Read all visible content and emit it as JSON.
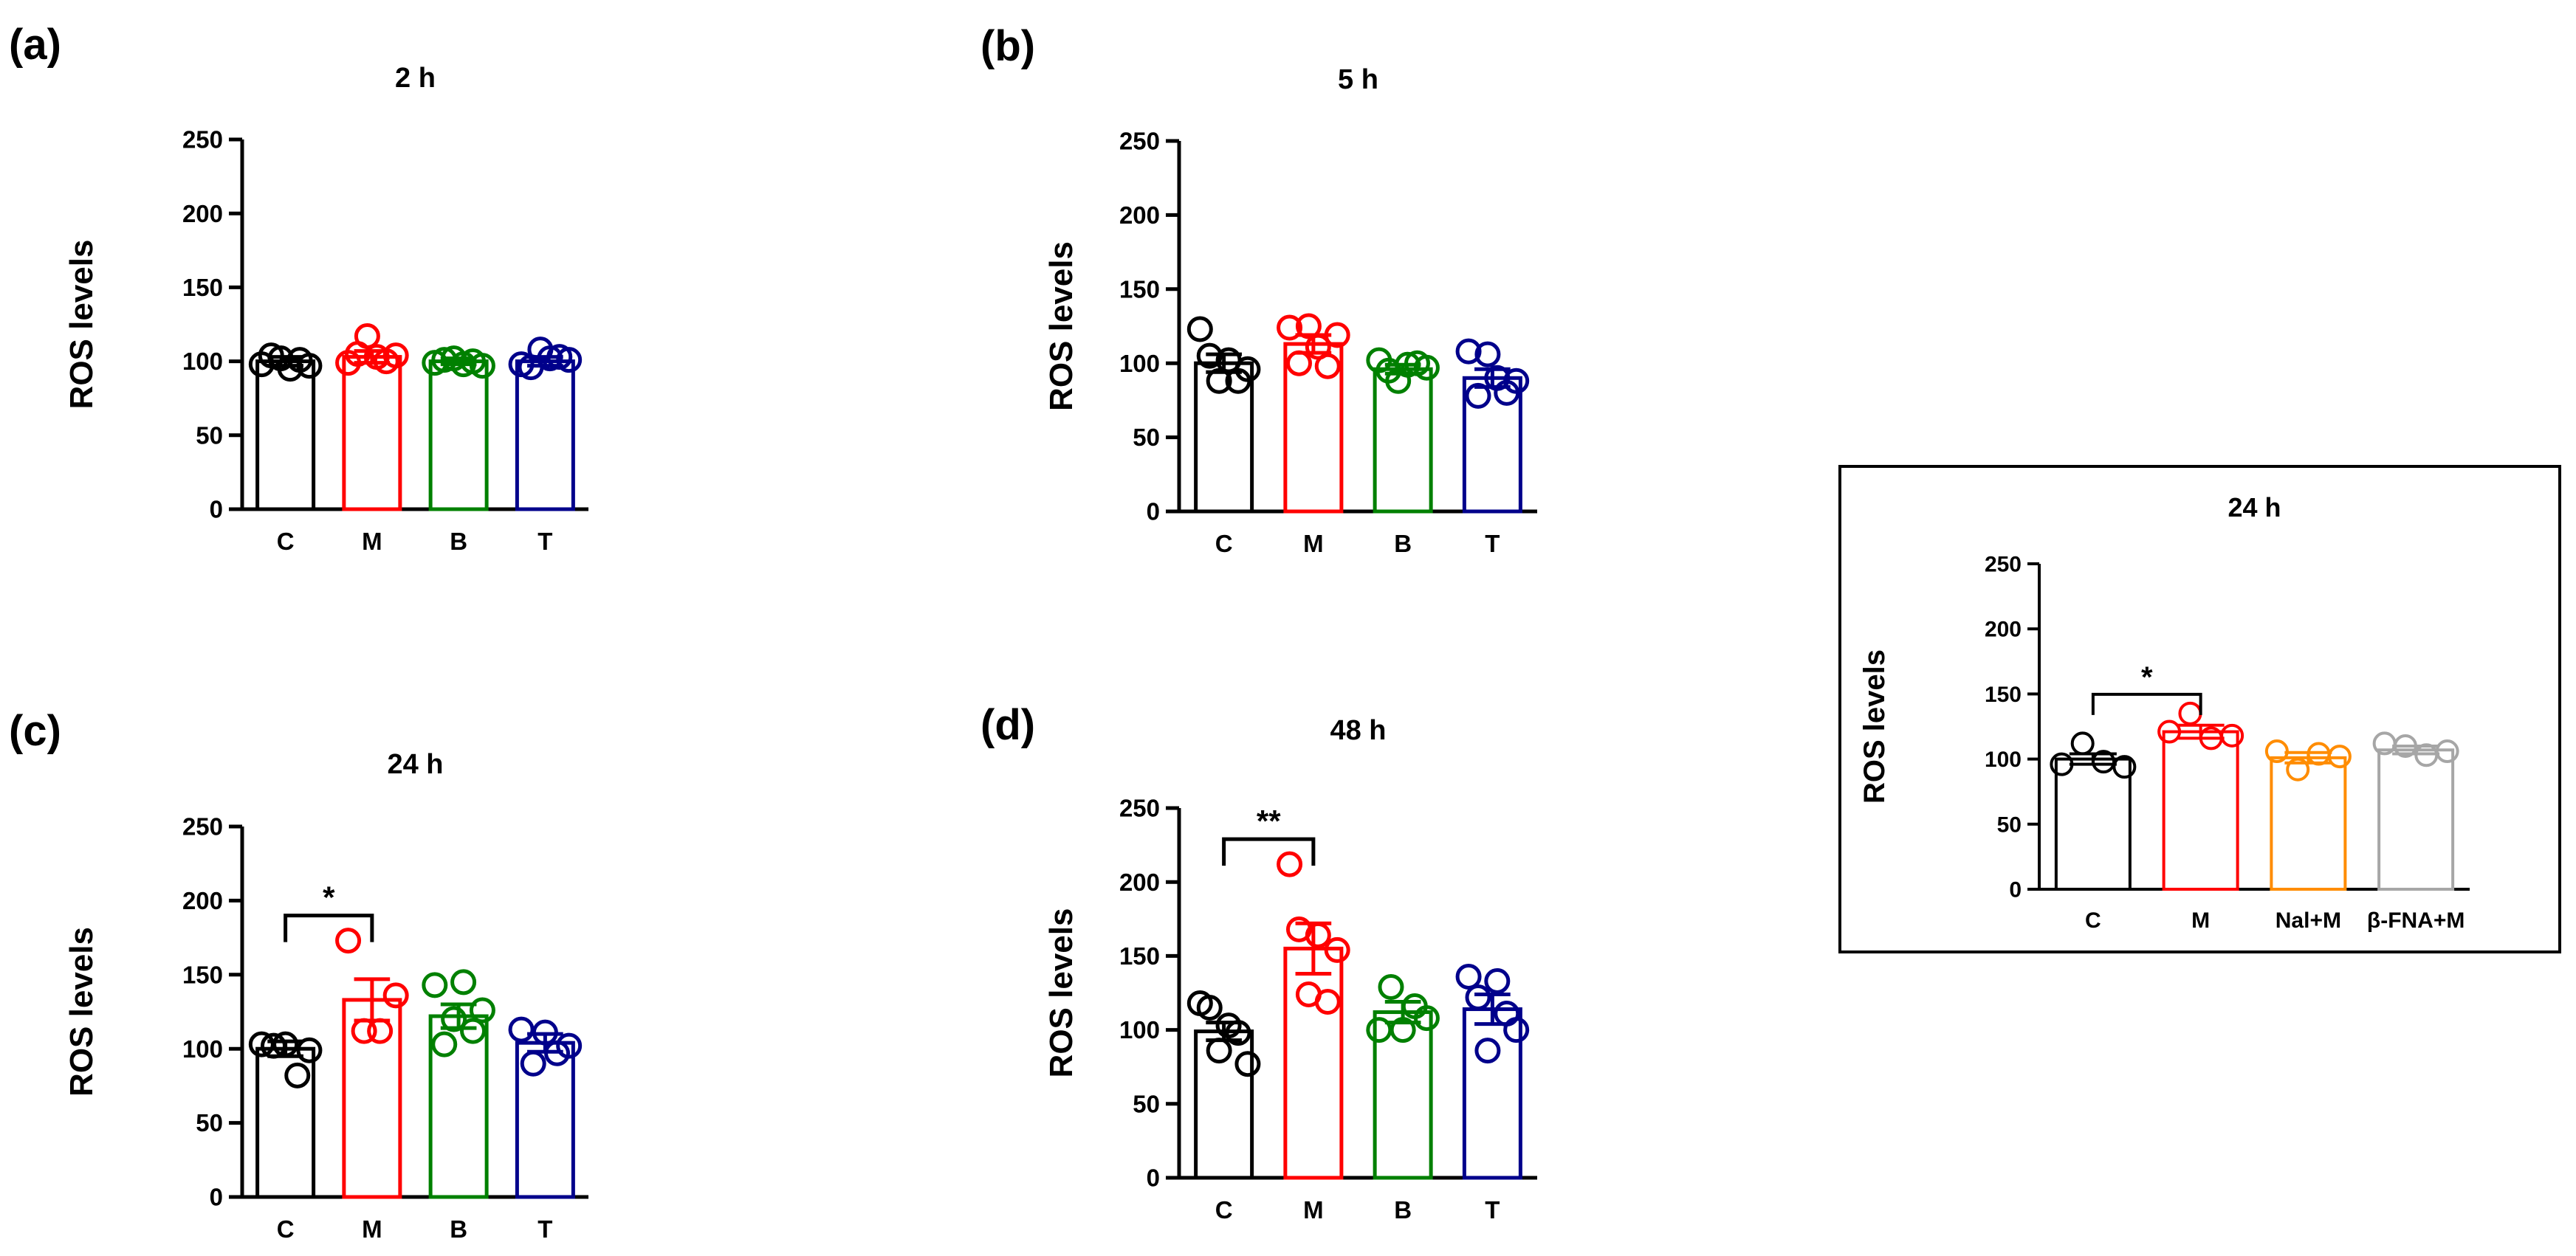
{
  "figure": {
    "background": "#ffffff",
    "axis_color": "#000000",
    "series_colors": {
      "C": "#000000",
      "M": "#ff0000",
      "B": "#008000",
      "T": "#00008b",
      "Nal+M": "#ff8c00",
      "β-FNA+M": "#a6a6a6"
    }
  },
  "chart_data": [
    {
      "id": "a",
      "panel_label": "(a)",
      "type": "bar",
      "title": "2 h",
      "xlabel": "",
      "ylabel": "ROS levels",
      "ylim": [
        0,
        250
      ],
      "yticks": [
        0,
        50,
        100,
        150,
        200,
        250
      ],
      "categories": [
        "C",
        "M",
        "B",
        "T"
      ],
      "values": [
        100,
        103,
        100,
        100
      ],
      "errors": [
        3,
        4,
        2,
        3
      ],
      "points": [
        [
          98,
          104,
          102,
          95,
          101,
          97
        ],
        [
          99,
          105,
          117,
          103,
          100,
          104
        ],
        [
          99,
          101,
          102,
          98,
          100,
          97
        ],
        [
          98,
          96,
          108,
          102,
          103,
          101
        ]
      ],
      "significance": []
    },
    {
      "id": "b",
      "panel_label": "(b)",
      "type": "bar",
      "title": "5 h",
      "xlabel": "",
      "ylabel": "ROS levels",
      "ylim": [
        0,
        250
      ],
      "yticks": [
        0,
        50,
        100,
        150,
        200,
        250
      ],
      "categories": [
        "C",
        "M",
        "B",
        "T"
      ],
      "values": [
        100,
        113,
        96,
        90
      ],
      "errors": [
        6,
        6,
        3,
        6
      ],
      "points": [
        [
          123,
          105,
          88,
          102,
          88,
          96
        ],
        [
          124,
          100,
          125,
          111,
          98,
          119
        ],
        [
          102,
          95,
          88,
          99,
          100,
          97
        ],
        [
          108,
          78,
          106,
          90,
          80,
          88
        ]
      ],
      "significance": []
    },
    {
      "id": "c",
      "panel_label": "(c)",
      "type": "bar",
      "title": "24 h",
      "xlabel": "",
      "ylabel": "ROS levels",
      "ylim": [
        0,
        250
      ],
      "yticks": [
        0,
        50,
        100,
        150,
        200,
        250
      ],
      "categories": [
        "C",
        "M",
        "B",
        "T"
      ],
      "values": [
        100,
        133,
        122,
        104
      ],
      "errors": [
        5,
        14,
        8,
        6
      ],
      "points": [
        [
          103,
          102,
          103,
          82,
          99
        ],
        [
          173,
          112,
          112,
          136
        ],
        [
          143,
          103,
          120,
          145,
          112,
          126
        ],
        [
          113,
          90,
          111,
          97,
          102
        ]
      ],
      "significance": [
        {
          "from": "C",
          "to": "M",
          "label": "*"
        }
      ]
    },
    {
      "id": "d",
      "panel_label": "(d)",
      "type": "bar",
      "title": "48 h",
      "xlabel": "",
      "ylabel": "ROS levels",
      "ylim": [
        0,
        250
      ],
      "yticks": [
        0,
        50,
        100,
        150,
        200,
        250
      ],
      "categories": [
        "C",
        "M",
        "B",
        "T"
      ],
      "values": [
        99,
        155,
        112,
        114
      ],
      "errors": [
        6,
        17,
        7,
        10
      ],
      "points": [
        [
          118,
          115,
          86,
          103,
          98,
          77
        ],
        [
          212,
          168,
          124,
          164,
          119,
          154
        ],
        [
          100,
          129,
          100,
          116,
          108
        ],
        [
          136,
          122,
          86,
          133,
          111,
          100
        ]
      ],
      "significance": [
        {
          "from": "C",
          "to": "M",
          "label": "**"
        }
      ]
    },
    {
      "id": "inset",
      "panel_label": "",
      "type": "bar",
      "title": "24 h",
      "xlabel": "",
      "ylabel": "ROS levels",
      "ylim": [
        0,
        250
      ],
      "yticks": [
        0,
        50,
        100,
        150,
        200,
        250
      ],
      "categories": [
        "C",
        "M",
        "Nal+M",
        "β-FNA+M"
      ],
      "values": [
        100,
        121,
        101,
        107
      ],
      "errors": [
        4,
        5,
        4,
        3
      ],
      "points": [
        [
          96,
          112,
          98,
          94
        ],
        [
          121,
          135,
          116,
          118
        ],
        [
          106,
          92,
          104,
          102
        ],
        [
          112,
          110,
          103,
          106
        ]
      ],
      "significance": [
        {
          "from": "C",
          "to": "M",
          "label": "*"
        }
      ]
    }
  ]
}
